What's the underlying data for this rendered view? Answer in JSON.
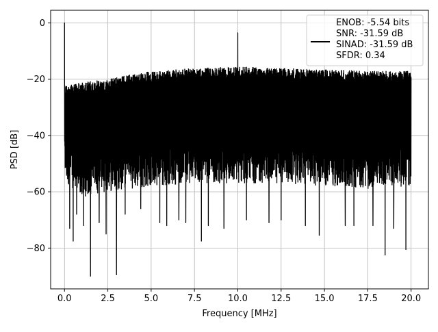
{
  "chart_data": {
    "type": "line",
    "title": "",
    "xlabel": "Frequency [MHz]",
    "ylabel": "PSD [dB]",
    "xlim": [
      -0.8,
      21.0
    ],
    "ylim": [
      -94.5,
      4.5
    ],
    "xticks": [
      0.0,
      2.5,
      5.0,
      7.5,
      10.0,
      12.5,
      15.0,
      17.5,
      20.0
    ],
    "xtick_labels": [
      "0.0",
      "2.5",
      "5.0",
      "7.5",
      "10.0",
      "12.5",
      "15.0",
      "17.5",
      "20.0"
    ],
    "yticks": [
      0,
      -20,
      -40,
      -60,
      -80
    ],
    "ytick_labels": [
      "0",
      "−20",
      "−40",
      "−60",
      "−80"
    ],
    "grid": true,
    "legend_position": "upper-right",
    "legend_text": [
      "ENOB: -5.54 bits",
      "SNR: -31.59 dB",
      "SINAD: -31.59 dB",
      "SFDR: 0.34"
    ],
    "line_color": "#000000",
    "series": [
      {
        "values_note_free": true,
        "envelope_upper": [
          [
            0.0,
            -22
          ],
          [
            1.0,
            -21
          ],
          [
            2.5,
            -20
          ],
          [
            4.0,
            -18
          ],
          [
            5.0,
            -17
          ],
          [
            7.5,
            -16
          ],
          [
            10.0,
            -15.5
          ],
          [
            12.5,
            -16
          ],
          [
            15.0,
            -16.5
          ],
          [
            17.5,
            -17
          ],
          [
            20.0,
            -17
          ]
        ],
        "envelope_lower": [
          [
            0.0,
            -56
          ],
          [
            1.0,
            -62
          ],
          [
            2.5,
            -60
          ],
          [
            5.0,
            -58
          ],
          [
            7.5,
            -57
          ],
          [
            10.0,
            -57
          ],
          [
            12.5,
            -57
          ],
          [
            15.0,
            -58
          ],
          [
            17.5,
            -59
          ],
          [
            20.0,
            -58
          ]
        ],
        "peaks": [
          {
            "x": 0.0,
            "y": 0.0
          },
          {
            "x": 0.05,
            "y": -38
          },
          {
            "x": 10.0,
            "y": -3.5
          }
        ],
        "dips": [
          {
            "x": 0.3,
            "y": -73
          },
          {
            "x": 0.5,
            "y": -77.5
          },
          {
            "x": 0.7,
            "y": -68
          },
          {
            "x": 1.1,
            "y": -72
          },
          {
            "x": 1.5,
            "y": -90
          },
          {
            "x": 2.0,
            "y": -71
          },
          {
            "x": 2.4,
            "y": -75
          },
          {
            "x": 3.0,
            "y": -89.5
          },
          {
            "x": 3.5,
            "y": -68
          },
          {
            "x": 4.4,
            "y": -66
          },
          {
            "x": 5.5,
            "y": -71
          },
          {
            "x": 5.9,
            "y": -72
          },
          {
            "x": 6.6,
            "y": -70
          },
          {
            "x": 7.0,
            "y": -71
          },
          {
            "x": 7.9,
            "y": -77.5
          },
          {
            "x": 8.3,
            "y": -72
          },
          {
            "x": 9.2,
            "y": -73
          },
          {
            "x": 10.5,
            "y": -70
          },
          {
            "x": 11.8,
            "y": -71
          },
          {
            "x": 12.5,
            "y": -70
          },
          {
            "x": 13.9,
            "y": -72
          },
          {
            "x": 14.7,
            "y": -75.5
          },
          {
            "x": 16.2,
            "y": -72
          },
          {
            "x": 16.7,
            "y": -72
          },
          {
            "x": 17.8,
            "y": -72
          },
          {
            "x": 18.5,
            "y": -82.5
          },
          {
            "x": 19.0,
            "y": -73
          },
          {
            "x": 19.7,
            "y": -80.5
          }
        ]
      }
    ]
  }
}
